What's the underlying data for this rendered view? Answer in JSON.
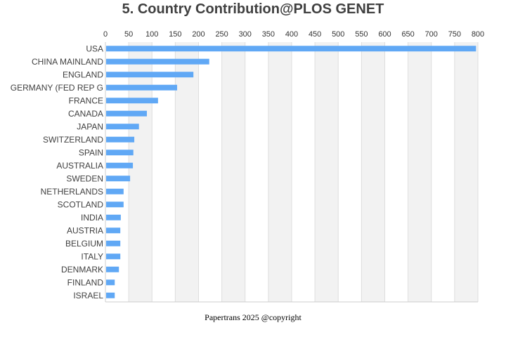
{
  "chart_data": {
    "type": "bar",
    "orientation": "horizontal",
    "title": "5. Country Contribution@PLOS GENET",
    "xlabel": "",
    "ylabel": "",
    "xlim": [
      0,
      800
    ],
    "xticks": [
      0,
      50,
      100,
      150,
      200,
      250,
      300,
      350,
      400,
      450,
      500,
      550,
      600,
      650,
      700,
      750,
      800
    ],
    "categories": [
      "USA",
      "CHINA MAINLAND",
      "ENGLAND",
      "GERMANY (FED REP G",
      "FRANCE",
      "CANADA",
      "JAPAN",
      "SWITZERLAND",
      "SPAIN",
      "AUSTRALIA",
      "SWEDEN",
      "NETHERLANDS",
      "SCOTLAND",
      "INDIA",
      "AUSTRIA",
      "BELGIUM",
      "ITALY",
      "DENMARK",
      "FINLAND",
      "ISRAEL"
    ],
    "values": [
      796,
      223,
      189,
      154,
      113,
      89,
      72,
      62,
      60,
      59,
      53,
      39,
      39,
      33,
      32,
      32,
      32,
      29,
      20,
      20
    ],
    "bar_color": "#60a8f5",
    "grid": true,
    "footer": "Papertrans 2025 @copyright"
  }
}
